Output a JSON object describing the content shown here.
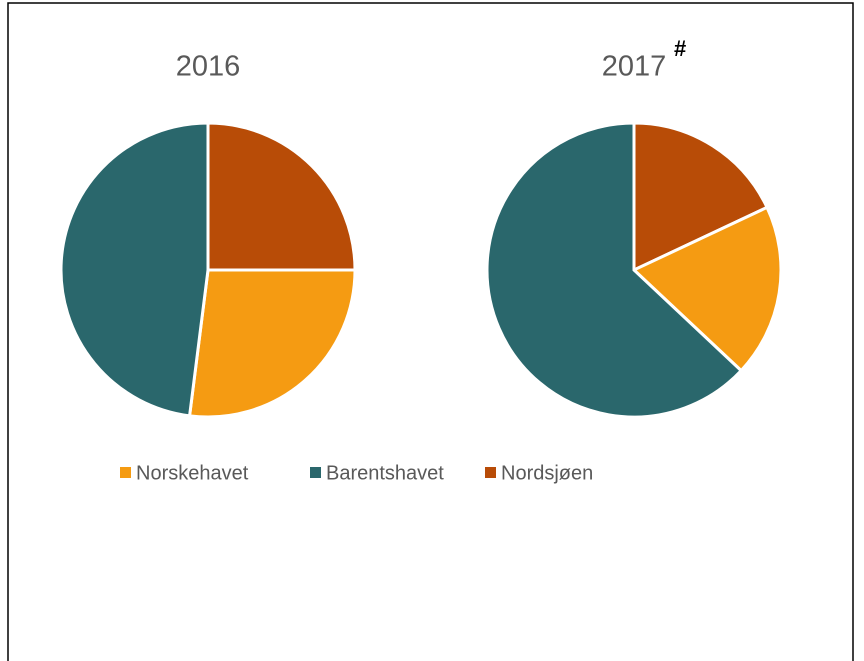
{
  "chart_data": [
    {
      "type": "pie",
      "title": "2016",
      "categories": [
        "Norskehavet",
        "Barentshavet",
        "Nordsjøen"
      ],
      "values": [
        27,
        48,
        25
      ],
      "colors": [
        "#F59B12",
        "#2A676C",
        "#B84C07"
      ]
    },
    {
      "type": "pie",
      "title": "2017",
      "annotation": "#",
      "categories": [
        "Norskehavet",
        "Barentshavet",
        "Nordsjøen"
      ],
      "values": [
        19,
        63,
        18
      ],
      "colors": [
        "#F59B12",
        "#2A676C",
        "#B84C07"
      ]
    }
  ]
}
